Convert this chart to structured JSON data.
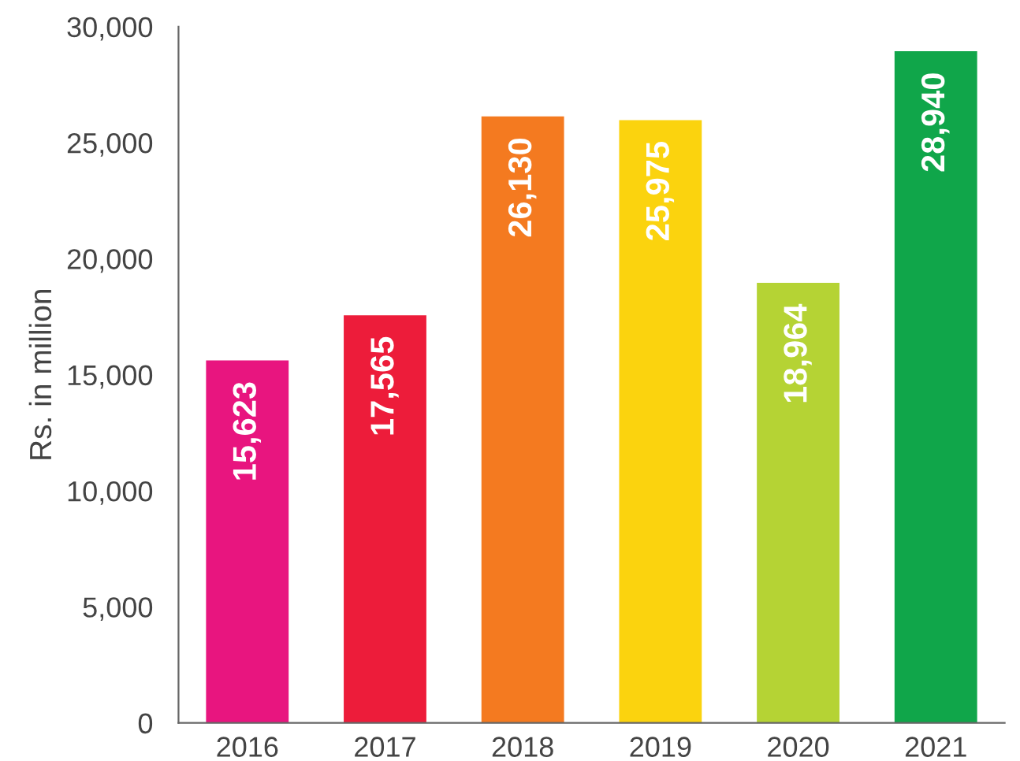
{
  "chart_data": {
    "type": "bar",
    "ylabel": "Rs. in million",
    "categories": [
      "2016",
      "2017",
      "2018",
      "2019",
      "2020",
      "2021"
    ],
    "values": [
      15623,
      17565,
      26130,
      25975,
      18964,
      28940
    ],
    "value_labels": [
      "15,623",
      "17,565",
      "26,130",
      "25,975",
      "18,964",
      "28,940"
    ],
    "colors": [
      "#e8157f",
      "#ed1c3a",
      "#f47a20",
      "#fbd30e",
      "#b5d334",
      "#10a64a"
    ],
    "ylim": [
      0,
      30000
    ],
    "yticks": [
      0,
      {
        "value": 5000,
        "label": "5,000"
      },
      {
        "value": 10000,
        "label": "10,000"
      },
      {
        "value": 15000,
        "label": "15,000"
      },
      {
        "value": 20000,
        "label": "20,000"
      },
      {
        "value": 25000,
        "label": "25,000"
      },
      {
        "value": 30000,
        "label": "30,000"
      }
    ],
    "grid": false,
    "legend": false
  }
}
